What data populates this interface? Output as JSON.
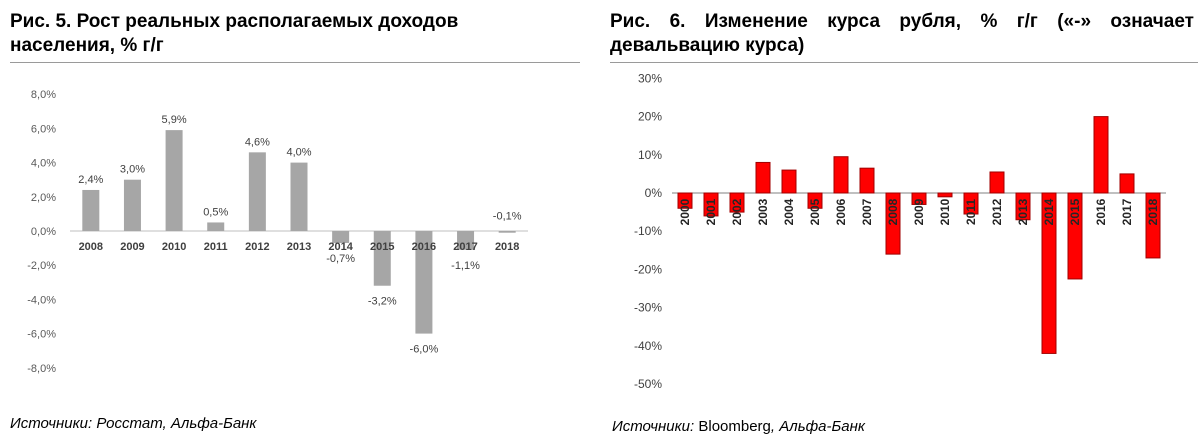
{
  "left": {
    "title": "Рис. 5. Рост реальных располагаемых доходов населения, % г/г",
    "source": "Источники: Росстат, Альфа-Банк"
  },
  "right": {
    "title": "Рис. 6. Изменение курса рубля, % г/г («-» означает девальвацию курса)",
    "source_prefix": "Источники: ",
    "source_brand": "Bloomberg",
    "source_suffix": ", Альфа-Банк"
  },
  "chart_data": [
    {
      "type": "bar",
      "title": "Рис. 5. Рост реальных располагаемых доходов населения, % г/г",
      "categories": [
        "2008",
        "2009",
        "2010",
        "2011",
        "2012",
        "2013",
        "2014",
        "2015",
        "2016",
        "2017",
        "2018"
      ],
      "values": [
        2.4,
        3.0,
        5.9,
        0.5,
        4.6,
        4.0,
        -0.7,
        -3.2,
        -6.0,
        -1.1,
        -0.1
      ],
      "data_labels": [
        "2,4%",
        "3,0%",
        "5,9%",
        "0,5%",
        "4,6%",
        "4,0%",
        "-0,7%",
        "-3,2%",
        "-6,0%",
        "-1,1%",
        "-0,1%"
      ],
      "y_ticks": [
        "8,0%",
        "6,0%",
        "4,0%",
        "2,0%",
        "0,0%",
        "-2,0%",
        "-4,0%",
        "-6,0%",
        "-8,0%"
      ],
      "ylim": [
        -8,
        8
      ],
      "color": "#a6a6a6",
      "grid": false,
      "legend": "none"
    },
    {
      "type": "bar",
      "title": "Рис. 6. Изменение курса рубля, % г/г («-» означает девальвацию курса)",
      "categories": [
        "2000",
        "2001",
        "2002",
        "2003",
        "2004",
        "2005",
        "2006",
        "2007",
        "2008",
        "2009",
        "2010",
        "2011",
        "2012",
        "2013",
        "2014",
        "2015",
        "2016",
        "2017",
        "2018"
      ],
      "values": [
        -4,
        -6,
        -5,
        8,
        6,
        -4,
        9.5,
        6.5,
        -16,
        -3,
        -1,
        -5.5,
        5.5,
        -7,
        -42,
        -22.5,
        20,
        5,
        -17
      ],
      "y_ticks": [
        "30%",
        "20%",
        "10%",
        "0%",
        "-10%",
        "-20%",
        "-30%",
        "-40%",
        "-50%"
      ],
      "ylim": [
        -50,
        30
      ],
      "color": "#ff0000",
      "edge_color": "#a00000",
      "grid": false,
      "legend": "none"
    }
  ]
}
